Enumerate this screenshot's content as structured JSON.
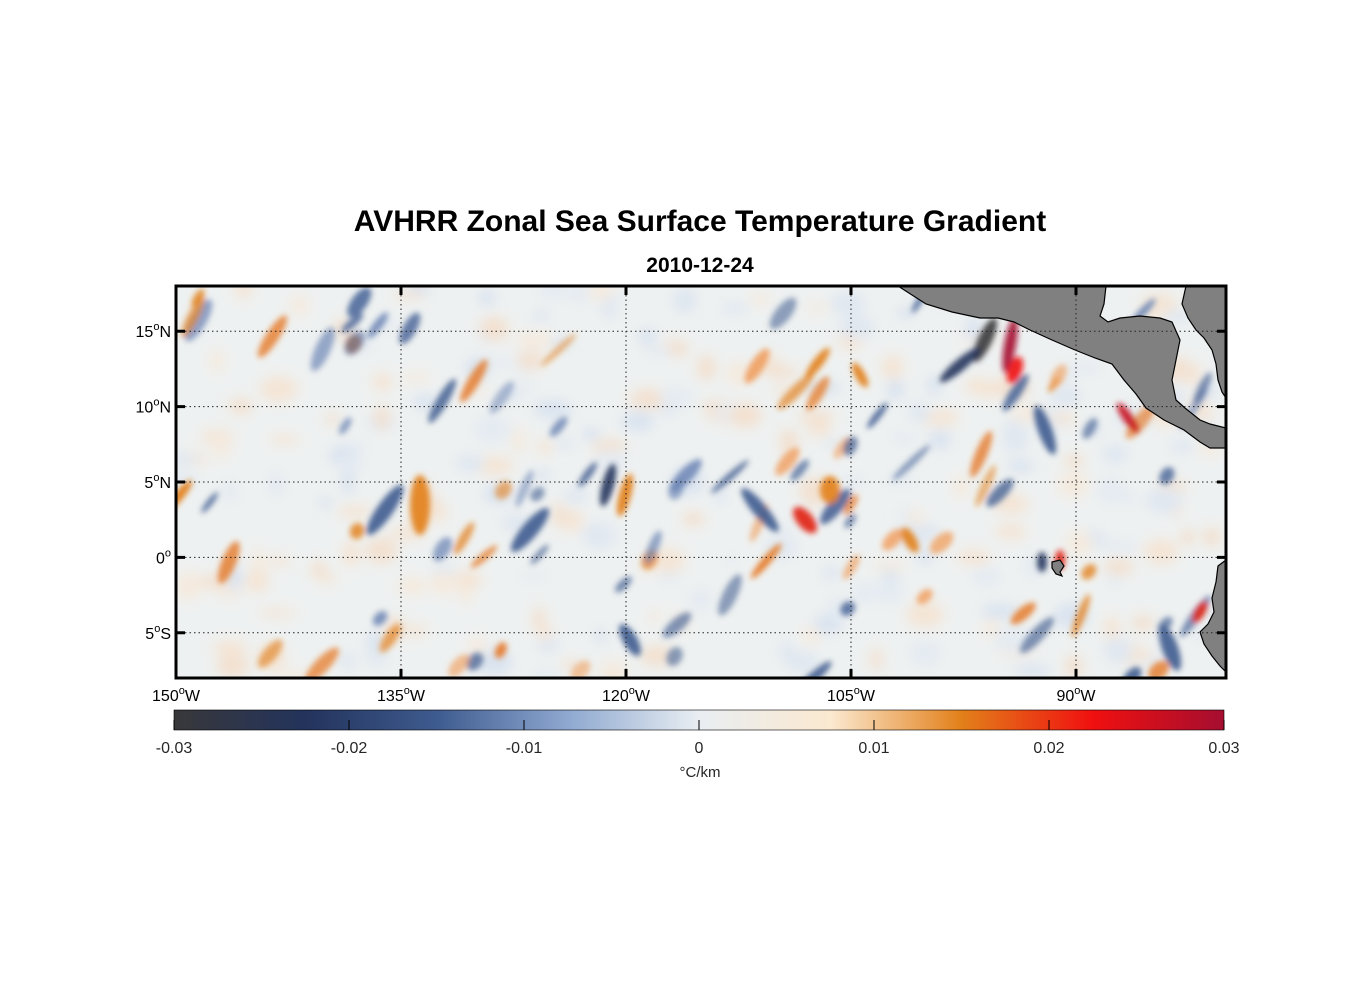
{
  "title": "AVHRR Zonal Sea Surface Temperature Gradient",
  "subtitle": "2010-12-24",
  "map": {
    "lon_range": [
      -150,
      -80
    ],
    "lat_range": [
      -8,
      18
    ],
    "lat_ticks": [
      {
        "value": 15,
        "label": "15",
        "hemi": "N"
      },
      {
        "value": 10,
        "label": "10",
        "hemi": "N"
      },
      {
        "value": 5,
        "label": "5",
        "hemi": "N"
      },
      {
        "value": 0,
        "label": "0",
        "hemi": ""
      },
      {
        "value": -5,
        "label": "5",
        "hemi": "S"
      }
    ],
    "lon_ticks": [
      {
        "value": -150,
        "label": "150",
        "hemi": "W"
      },
      {
        "value": -135,
        "label": "135",
        "hemi": "W"
      },
      {
        "value": -120,
        "label": "120",
        "hemi": "W"
      },
      {
        "value": -105,
        "label": "105",
        "hemi": "W"
      },
      {
        "value": -90,
        "label": "90",
        "hemi": "W"
      }
    ],
    "land_color": "#808080",
    "grid": true
  },
  "colorbar": {
    "min": -0.03,
    "max": 0.03,
    "ticks": [
      "-0.03",
      "-0.02",
      "-0.01",
      "0",
      "0.01",
      "0.02",
      "0.03"
    ],
    "unit": "°C/km",
    "colors": [
      "#38383a",
      "#23335c",
      "#3e5b8f",
      "#8ea8d0",
      "#e9eef2",
      "#fbe9d0",
      "#e2801a",
      "#f01010",
      "#a50e30"
    ]
  }
}
